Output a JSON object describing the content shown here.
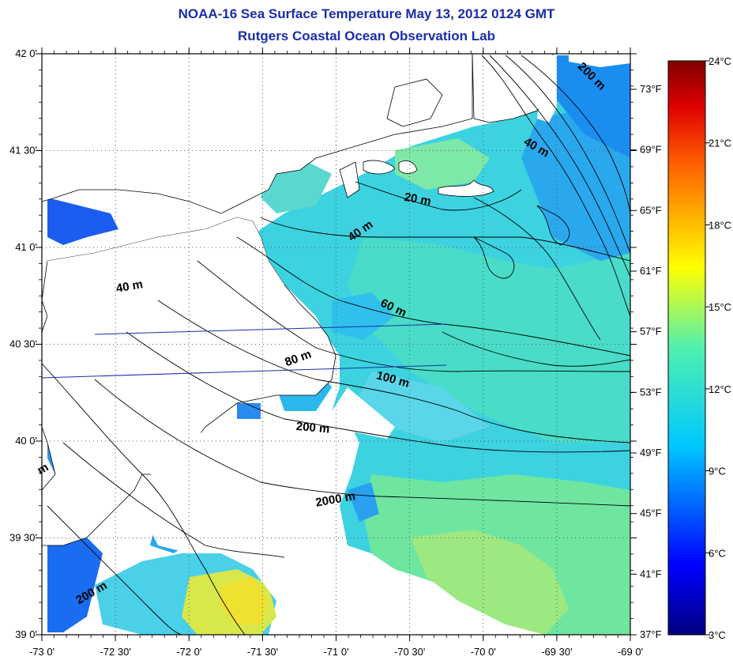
{
  "title": "NOAA-16 Sea Surface Temperature May 13, 2012 0124 GMT",
  "subtitle": "Rutgers Coastal Ocean Observation Lab",
  "colors": {
    "title": "#1a2ea8",
    "land": "#ffffff",
    "contour": "#000000",
    "transect": "#1a2ea8"
  },
  "map": {
    "lon_range": [
      -73.0,
      -69.0
    ],
    "lat_range": [
      39.0,
      42.0
    ],
    "lon_ticks": [
      "-73 0'",
      "-72 30'",
      "-72 0'",
      "-71 30'",
      "-71 0'",
      "-70 30'",
      "-70 0'",
      "-69 30'",
      "-69 0'"
    ],
    "lat_ticks": [
      "42 0'",
      "41 30'",
      "41 0'",
      "40 30'",
      "40 0'",
      "39 30'",
      "39 0'"
    ],
    "grid": true,
    "fahrenheit_ticks": [
      "73°F",
      "69°F",
      "65°F",
      "61°F",
      "57°F",
      "53°F",
      "49°F",
      "45°F",
      "41°F",
      "37°F"
    ],
    "contour_labels": [
      {
        "text": "200 m",
        "lon": -69.28,
        "lat": 41.87,
        "rot": 45
      },
      {
        "text": "40 m",
        "lon": -69.65,
        "lat": 41.5,
        "rot": 30
      },
      {
        "text": "20 m",
        "lon": -70.45,
        "lat": 41.23,
        "rot": 10
      },
      {
        "text": "40 m",
        "lon": -70.82,
        "lat": 41.07,
        "rot": -35
      },
      {
        "text": "40 m",
        "lon": -72.4,
        "lat": 40.78,
        "rot": -10
      },
      {
        "text": "60 m",
        "lon": -70.62,
        "lat": 40.67,
        "rot": 25
      },
      {
        "text": "80 m",
        "lon": -71.25,
        "lat": 40.41,
        "rot": -20
      },
      {
        "text": "100 m",
        "lon": -70.62,
        "lat": 40.3,
        "rot": 15
      },
      {
        "text": "200 m",
        "lon": -71.16,
        "lat": 40.05,
        "rot": 5
      },
      {
        "text": "2000 m",
        "lon": -71.0,
        "lat": 39.68,
        "rot": -10
      },
      {
        "text": "200 m",
        "lon": -72.65,
        "lat": 39.2,
        "rot": -30
      },
      {
        "text": "m",
        "lon": -72.98,
        "lat": 39.84,
        "rot": -30
      }
    ]
  },
  "colorbar": {
    "unit": "°C",
    "celsius_ticks": [
      "24°C",
      "21°C",
      "18°C",
      "15°C",
      "12°C",
      "9°C",
      "6°C",
      "3°C"
    ],
    "range": [
      3,
      24
    ]
  }
}
